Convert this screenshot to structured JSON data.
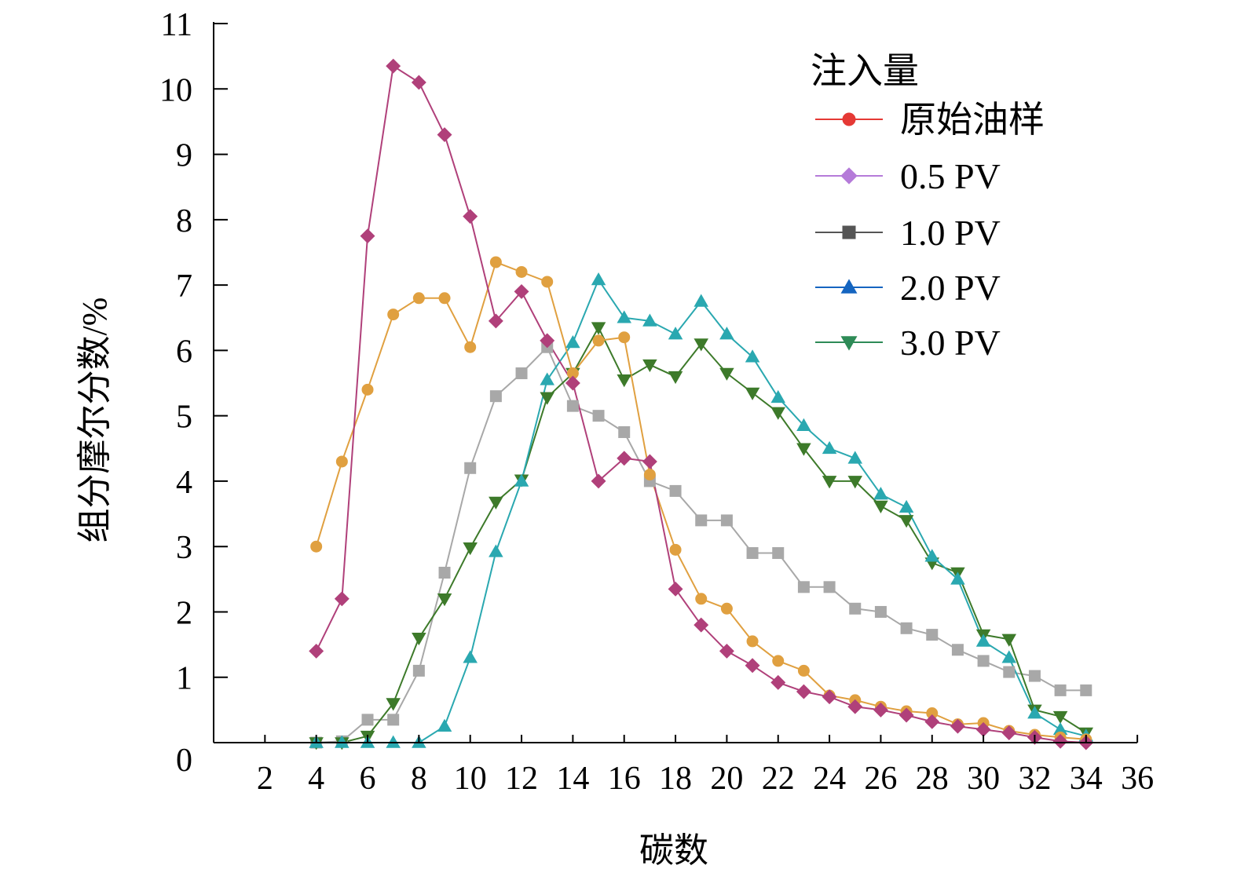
{
  "chart_data": {
    "type": "line",
    "xlabel": "碳数",
    "ylabel": "组分摩尔分数/%",
    "xlim": [
      0,
      36
    ],
    "ylim": [
      0,
      11
    ],
    "xticks": [
      2,
      4,
      6,
      8,
      10,
      12,
      14,
      16,
      18,
      20,
      22,
      24,
      26,
      28,
      30,
      32,
      34,
      36
    ],
    "yticks": [
      0,
      1,
      2,
      3,
      4,
      5,
      6,
      7,
      8,
      9,
      10,
      11
    ],
    "grid": false,
    "legend": {
      "title": "注入量",
      "position": "top-right"
    },
    "series": [
      {
        "name": "原始油样",
        "color": "#e0a040",
        "marker": "circle",
        "legend_color": "#e53935",
        "x": [
          4,
          5,
          6,
          7,
          8,
          9,
          10,
          11,
          12,
          13,
          14,
          15,
          16,
          17,
          18,
          19,
          20,
          21,
          22,
          23,
          24,
          25,
          26,
          27,
          28,
          29,
          30,
          31,
          32,
          33,
          34
        ],
        "y": [
          3.0,
          4.3,
          5.4,
          6.55,
          6.8,
          6.8,
          6.05,
          7.35,
          7.2,
          7.05,
          5.65,
          6.15,
          6.2,
          4.1,
          2.95,
          2.2,
          2.05,
          1.55,
          1.25,
          1.1,
          0.72,
          0.65,
          0.55,
          0.48,
          0.45,
          0.28,
          0.3,
          0.18,
          0.12,
          0.08,
          0.05
        ]
      },
      {
        "name": "0.5 PV",
        "color": "#b0407a",
        "marker": "diamond",
        "legend_color": "#b57bd9",
        "x": [
          4,
          5,
          6,
          7,
          8,
          9,
          10,
          11,
          12,
          13,
          14,
          15,
          16,
          17,
          18,
          19,
          20,
          21,
          22,
          23,
          24,
          25,
          26,
          27,
          28,
          29,
          30,
          31,
          32,
          33,
          34
        ],
        "y": [
          1.4,
          2.2,
          7.75,
          10.35,
          10.1,
          9.3,
          8.05,
          6.45,
          6.9,
          6.15,
          5.5,
          4.0,
          4.35,
          4.3,
          2.35,
          1.8,
          1.4,
          1.18,
          0.92,
          0.78,
          0.7,
          0.55,
          0.5,
          0.42,
          0.32,
          0.25,
          0.2,
          0.15,
          0.08,
          0.02,
          0.0
        ]
      },
      {
        "name": "1.0 PV",
        "color": "#a8a8a8",
        "marker": "square",
        "legend_color": "#555555",
        "x": [
          4,
          5,
          6,
          7,
          8,
          9,
          10,
          11,
          12,
          13,
          14,
          15,
          16,
          17,
          18,
          19,
          20,
          21,
          22,
          23,
          24,
          25,
          26,
          27,
          28,
          29,
          30,
          31,
          32,
          33,
          34
        ],
        "y": [
          0.0,
          0.02,
          0.35,
          0.35,
          1.1,
          2.6,
          4.2,
          5.3,
          5.65,
          6.05,
          5.15,
          5.0,
          4.75,
          4.0,
          3.85,
          3.4,
          3.4,
          2.9,
          2.9,
          2.38,
          2.38,
          2.05,
          2.0,
          1.75,
          1.65,
          1.42,
          1.25,
          1.08,
          1.02,
          0.8,
          0.8
        ]
      },
      {
        "name": "2.0 PV",
        "color": "#2aa8b0",
        "marker": "triangle",
        "legend_color": "#1565c0",
        "x": [
          4,
          5,
          6,
          7,
          8,
          9,
          10,
          11,
          12,
          13,
          14,
          15,
          16,
          17,
          18,
          19,
          20,
          21,
          22,
          23,
          24,
          25,
          26,
          27,
          28,
          29,
          30,
          31,
          32,
          33,
          34
        ],
        "y": [
          0.0,
          0.0,
          0.0,
          0.0,
          0.0,
          0.25,
          1.3,
          2.92,
          4.0,
          5.55,
          6.12,
          7.08,
          6.5,
          6.45,
          6.25,
          6.75,
          6.25,
          5.9,
          5.28,
          4.85,
          4.5,
          4.35,
          3.8,
          3.6,
          2.85,
          2.5,
          1.55,
          1.3,
          0.45,
          0.2,
          0.1
        ]
      },
      {
        "name": "3.0 PV",
        "color": "#3d7a2a",
        "marker": "triangle-down",
        "legend_color": "#2e8b57",
        "x": [
          4,
          5,
          6,
          7,
          8,
          9,
          10,
          11,
          12,
          13,
          14,
          15,
          16,
          17,
          18,
          19,
          20,
          21,
          22,
          23,
          24,
          25,
          26,
          27,
          28,
          29,
          30,
          31,
          32,
          33,
          34
        ],
        "y": [
          0.0,
          0.0,
          0.1,
          0.6,
          1.6,
          2.2,
          2.98,
          3.68,
          4.02,
          5.28,
          5.65,
          6.35,
          5.55,
          5.78,
          5.6,
          6.1,
          5.65,
          5.35,
          5.05,
          4.5,
          4.0,
          4.0,
          3.62,
          3.4,
          2.75,
          2.6,
          1.65,
          1.58,
          0.5,
          0.4,
          0.15
        ]
      }
    ]
  }
}
